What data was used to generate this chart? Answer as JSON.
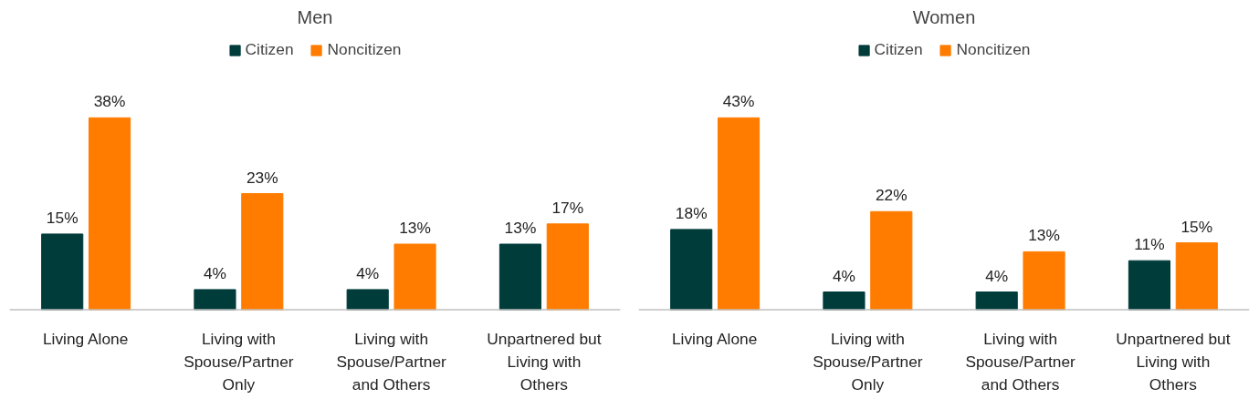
{
  "chart_data": [
    {
      "type": "bar",
      "title": "Men",
      "categories": [
        "Living Alone",
        "Living with Spouse/Partner Only",
        "Living with Spouse/Partner and Others",
        "Unpartnered but Living with Others"
      ],
      "series": [
        {
          "name": "Citizen",
          "color": "#003c3a",
          "values": [
            15,
            4,
            4,
            13
          ],
          "value_labels": [
            "15%",
            "4%",
            "4%",
            "13%"
          ]
        },
        {
          "name": "Noncitizen",
          "color": "#ff7c00",
          "values": [
            38,
            23,
            13,
            17
          ],
          "value_labels": [
            "38%",
            "23%",
            "13%",
            "17%"
          ]
        }
      ],
      "legend": "top",
      "grid": false
    },
    {
      "type": "bar",
      "title": "Women",
      "categories": [
        "Living Alone",
        "Living with Spouse/Partner Only",
        "Living with Spouse/Partner and Others",
        "Unpartnered but Living with Others"
      ],
      "series": [
        {
          "name": "Citizen",
          "color": "#003c3a",
          "values": [
            18,
            4,
            4,
            11
          ],
          "value_labels": [
            "18%",
            "4%",
            "4%",
            "11%"
          ]
        },
        {
          "name": "Noncitizen",
          "color": "#ff7c00",
          "values": [
            43,
            22,
            13,
            15
          ],
          "value_labels": [
            "43%",
            "22%",
            "13%",
            "15%"
          ]
        }
      ],
      "legend": "top",
      "grid": false
    }
  ]
}
